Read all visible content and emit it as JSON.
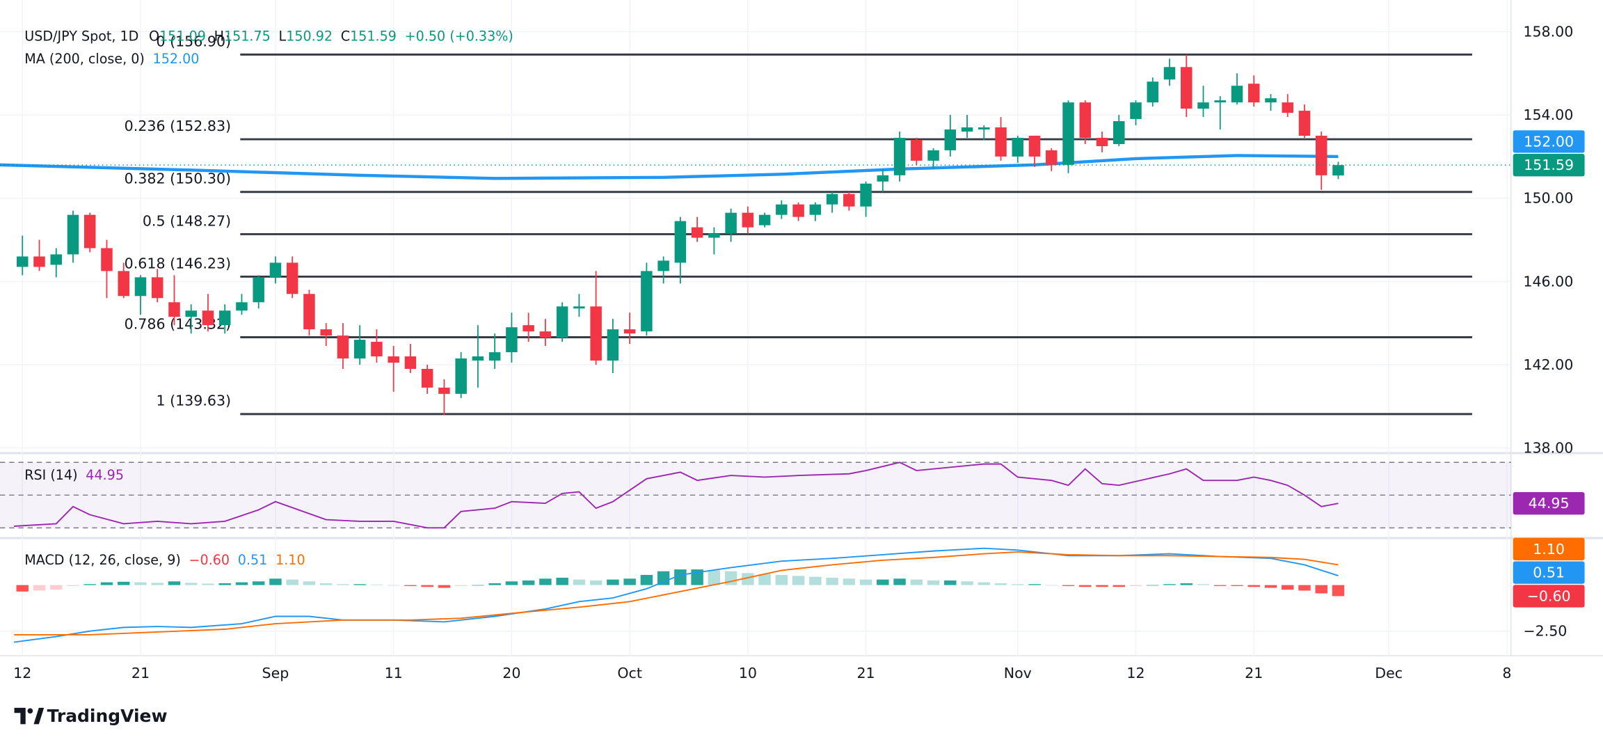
{
  "chart_data": [
    {
      "type": "candlestick",
      "title": "USD/JPY Spot, 1D",
      "ohlc_legend": [
        {
          "label": "O",
          "value": "151.09"
        },
        {
          "label": "H",
          "value": "151.75"
        },
        {
          "label": "L",
          "value": "150.92"
        },
        {
          "label": "C",
          "value": "151.59"
        }
      ],
      "change": "+0.50 (+0.33%)",
      "open": [
        146.7,
        147.2,
        146.8,
        147.3,
        149.2,
        147.6,
        146.5,
        145.3,
        146.2,
        145.0,
        144.3,
        144.6,
        143.9,
        144.6,
        145.0,
        146.2,
        146.9,
        145.4,
        143.7,
        143.4,
        142.3,
        143.1,
        142.4,
        142.4,
        141.8,
        140.9,
        140.6,
        142.2,
        142.2,
        142.6,
        143.9,
        143.6,
        143.3,
        144.7,
        144.8,
        142.2,
        143.7,
        143.6,
        146.5,
        146.9,
        148.6,
        148.1,
        148.3,
        149.3,
        148.7,
        149.2,
        149.7,
        149.2,
        149.7,
        150.2,
        149.6,
        150.8,
        151.1,
        152.8,
        151.8,
        152.3,
        153.2,
        153.3,
        153.4,
        152.0,
        153.0,
        152.3,
        151.6,
        154.6,
        152.9,
        152.6,
        153.8,
        154.6,
        155.7,
        156.3,
        154.3,
        154.6,
        154.6,
        155.5,
        154.6,
        154.6,
        154.2,
        153.0,
        151.09
      ],
      "high": [
        148.2,
        148.0,
        147.6,
        149.4,
        149.3,
        148.0,
        146.9,
        146.3,
        146.6,
        146.3,
        144.9,
        145.4,
        144.9,
        145.4,
        146.3,
        147.2,
        147.2,
        145.6,
        144.0,
        144.0,
        143.9,
        143.7,
        142.9,
        143.0,
        142.0,
        141.3,
        142.6,
        143.9,
        143.5,
        144.5,
        144.5,
        144.2,
        145.0,
        145.4,
        146.5,
        144.2,
        144.5,
        146.9,
        147.2,
        149.1,
        149.1,
        148.6,
        149.5,
        149.6,
        149.3,
        149.9,
        149.8,
        149.8,
        150.3,
        150.3,
        150.8,
        151.4,
        153.2,
        152.9,
        152.4,
        154.0,
        154.0,
        153.5,
        153.9,
        153.0,
        153.0,
        152.4,
        154.7,
        154.7,
        153.2,
        154.0,
        154.7,
        155.8,
        156.7,
        156.9,
        155.4,
        154.9,
        156.0,
        155.9,
        155.0,
        155.0,
        154.5,
        153.2,
        151.75
      ],
      "low": [
        146.3,
        146.5,
        146.2,
        146.9,
        147.4,
        145.2,
        145.2,
        144.4,
        145.0,
        143.9,
        143.5,
        143.6,
        143.5,
        144.4,
        144.7,
        145.9,
        145.2,
        143.4,
        142.9,
        141.8,
        142.0,
        142.1,
        140.7,
        141.6,
        140.6,
        139.58,
        140.4,
        140.9,
        141.8,
        142.1,
        143.1,
        142.9,
        143.1,
        144.3,
        142.0,
        141.6,
        143.0,
        143.4,
        145.9,
        145.9,
        147.9,
        147.3,
        147.9,
        148.3,
        148.6,
        149.0,
        148.9,
        148.9,
        149.3,
        149.4,
        149.1,
        150.3,
        150.8,
        151.6,
        151.4,
        152.0,
        152.9,
        152.8,
        151.8,
        151.7,
        151.5,
        151.3,
        151.2,
        152.6,
        152.2,
        152.5,
        153.5,
        154.4,
        155.4,
        153.9,
        153.9,
        153.3,
        154.5,
        154.4,
        154.2,
        153.9,
        152.9,
        150.4,
        150.92
      ],
      "close": [
        147.2,
        146.7,
        147.3,
        149.2,
        147.6,
        146.5,
        145.3,
        146.2,
        145.2,
        144.3,
        144.6,
        143.9,
        144.6,
        145.0,
        146.2,
        146.9,
        145.4,
        143.7,
        143.4,
        142.3,
        143.2,
        142.4,
        142.1,
        141.8,
        140.9,
        140.6,
        142.3,
        142.4,
        142.6,
        143.8,
        143.6,
        143.3,
        144.8,
        144.8,
        142.2,
        143.7,
        143.5,
        146.5,
        147.0,
        148.9,
        148.1,
        148.3,
        149.3,
        148.6,
        149.2,
        149.7,
        149.1,
        149.7,
        150.2,
        149.6,
        150.7,
        151.1,
        152.9,
        151.8,
        152.3,
        153.3,
        153.4,
        153.4,
        152.0,
        152.9,
        152.0,
        151.6,
        154.6,
        152.9,
        152.5,
        153.7,
        154.6,
        155.6,
        156.3,
        154.3,
        154.6,
        154.7,
        155.4,
        154.6,
        154.8,
        154.1,
        153.0,
        151.1,
        151.59
      ],
      "up_color": "#089981",
      "down_color": "#f23645",
      "last_label": "151.59",
      "xlim": [
        -1.33,
        88.24
      ],
      "xticks": [
        {
          "value": 0,
          "label": "12"
        },
        {
          "value": 7,
          "label": "21"
        },
        {
          "value": 15,
          "label": "Sep"
        },
        {
          "value": 22,
          "label": "11"
        },
        {
          "value": 29,
          "label": "20"
        },
        {
          "value": 36,
          "label": "Oct"
        },
        {
          "value": 43,
          "label": "10"
        },
        {
          "value": 50,
          "label": "21"
        },
        {
          "value": 59,
          "label": "Nov"
        },
        {
          "value": 66,
          "label": "12"
        },
        {
          "value": 73,
          "label": "21"
        },
        {
          "value": 81,
          "label": "Dec"
        },
        {
          "value": 88,
          "label": "8"
        }
      ],
      "ylim": [
        137.9,
        159.52
      ],
      "yticks": [
        {
          "value": 138,
          "label": "138.00"
        },
        {
          "value": 142,
          "label": "142.00"
        },
        {
          "value": 146,
          "label": "146.00"
        },
        {
          "value": 150,
          "label": "150.00"
        },
        {
          "value": 154,
          "label": "154.00"
        },
        {
          "value": 158,
          "label": "158.00"
        }
      ],
      "grid": true,
      "overlays": [
        {
          "name": "MA (200, close, 0)",
          "color": "#2196f3",
          "value_label": "152.00",
          "x": [
            -1.33,
            10,
            20,
            28,
            38,
            45,
            52,
            60,
            66,
            72,
            78
          ],
          "values": [
            151.6,
            151.35,
            151.1,
            150.95,
            151.0,
            151.15,
            151.4,
            151.6,
            151.9,
            152.05,
            152.0
          ]
        }
      ],
      "fib": {
        "color": "#363a45",
        "levels": [
          {
            "label": "0 (156.90)",
            "value": 156.9
          },
          {
            "label": "0.236 (152.83)",
            "value": 152.83
          },
          {
            "label": "0.382 (150.30)",
            "value": 150.3
          },
          {
            "label": "0.5 (148.27)",
            "value": 148.27
          },
          {
            "label": "0.618 (146.23)",
            "value": 146.23
          },
          {
            "label": "0.786 (143.32)",
            "value": 143.32
          },
          {
            "label": "1 (139.63)",
            "value": 139.63
          }
        ]
      }
    },
    {
      "type": "line",
      "title": "RSI (14)",
      "value_label": "44.95",
      "color": "#9c27b0",
      "ylim": [
        24.4,
        74.4
      ],
      "levels": [
        70,
        50,
        30
      ],
      "x": [
        -0.5,
        2,
        3,
        4,
        6,
        8,
        10,
        12,
        14,
        15,
        18,
        20,
        22,
        24,
        25,
        26,
        28,
        29,
        31,
        32,
        33,
        34,
        35,
        37,
        39,
        40,
        42,
        44,
        46,
        49,
        50,
        52,
        53,
        57,
        58,
        59,
        61,
        62,
        63,
        64,
        65,
        68,
        69,
        70,
        72,
        73,
        74,
        75,
        76,
        77,
        78
      ],
      "values": [
        31,
        32.5,
        43,
        38,
        32.5,
        34,
        32.5,
        34,
        41,
        46,
        35,
        34,
        34,
        30,
        30,
        40,
        42,
        46,
        45,
        51,
        52,
        42,
        46,
        60,
        64,
        59,
        62,
        61,
        62,
        63,
        65,
        70,
        65,
        69,
        69,
        61,
        59,
        56,
        66,
        57,
        56,
        63,
        66,
        59,
        59,
        61,
        59,
        56,
        50,
        43,
        44.95
      ]
    },
    {
      "type": "macd",
      "title": "MACD (12, 26, close, 9)",
      "ylim": [
        -3.78,
        2.5
      ],
      "yticks": [
        {
          "value": -2.5,
          "label": "−2.50"
        }
      ],
      "histogram": {
        "value_label": "−0.60",
        "color": "#f23645",
        "up_rising": "#26a69a",
        "up_falling": "#b2dfdb",
        "down_rising": "#ffcdd2",
        "down_falling": "#ff5252",
        "values": [
          -0.35,
          -0.3,
          -0.25,
          -0.05,
          0.05,
          0.15,
          0.18,
          0.15,
          0.12,
          0.2,
          0.12,
          0.08,
          0.1,
          0.15,
          0.2,
          0.35,
          0.3,
          0.2,
          0.1,
          0.05,
          0.05,
          0.03,
          0.0,
          -0.05,
          -0.1,
          -0.15,
          -0.05,
          0.0,
          0.1,
          0.2,
          0.25,
          0.35,
          0.4,
          0.3,
          0.25,
          0.3,
          0.35,
          0.55,
          0.75,
          0.85,
          0.85,
          0.8,
          0.75,
          0.65,
          0.6,
          0.55,
          0.5,
          0.45,
          0.4,
          0.35,
          0.3,
          0.3,
          0.35,
          0.3,
          0.25,
          0.25,
          0.2,
          0.15,
          0.1,
          0.05,
          0.05,
          0.0,
          -0.05,
          -0.1,
          -0.1,
          -0.1,
          -0.05,
          0.0,
          0.05,
          0.1,
          0.05,
          -0.05,
          -0.05,
          -0.1,
          -0.15,
          -0.25,
          -0.3,
          -0.45,
          -0.6
        ]
      },
      "series": [
        {
          "color": "#2196f3",
          "value_label": "0.51",
          "x": [
            -0.5,
            2,
            4,
            6,
            8,
            10,
            13,
            15,
            17,
            19,
            22,
            25,
            28,
            31,
            33,
            35,
            37,
            39,
            42,
            45,
            48,
            51,
            54,
            57,
            59,
            62,
            65,
            68,
            71,
            74,
            76,
            78
          ],
          "values": [
            -3.1,
            -2.8,
            -2.5,
            -2.3,
            -2.25,
            -2.3,
            -2.1,
            -1.7,
            -1.7,
            -1.9,
            -1.9,
            -2.0,
            -1.7,
            -1.3,
            -0.9,
            -0.7,
            -0.2,
            0.55,
            0.95,
            1.3,
            1.45,
            1.65,
            1.85,
            2.0,
            1.9,
            1.6,
            1.6,
            1.7,
            1.55,
            1.45,
            1.1,
            0.51
          ]
        },
        {
          "color": "#ff6d00",
          "value_label": "1.10",
          "x": [
            -0.5,
            4,
            8,
            12,
            15,
            19,
            23,
            26,
            30,
            33,
            36,
            39,
            42,
            45,
            48,
            51,
            54,
            57,
            59,
            62,
            65,
            68,
            71,
            74,
            76,
            78
          ],
          "values": [
            -2.7,
            -2.7,
            -2.55,
            -2.4,
            -2.1,
            -1.9,
            -1.9,
            -1.8,
            -1.45,
            -1.2,
            -0.9,
            -0.35,
            0.2,
            0.8,
            1.1,
            1.35,
            1.5,
            1.7,
            1.8,
            1.65,
            1.6,
            1.6,
            1.55,
            1.5,
            1.4,
            1.1
          ]
        }
      ]
    }
  ],
  "footer": "TradingView"
}
